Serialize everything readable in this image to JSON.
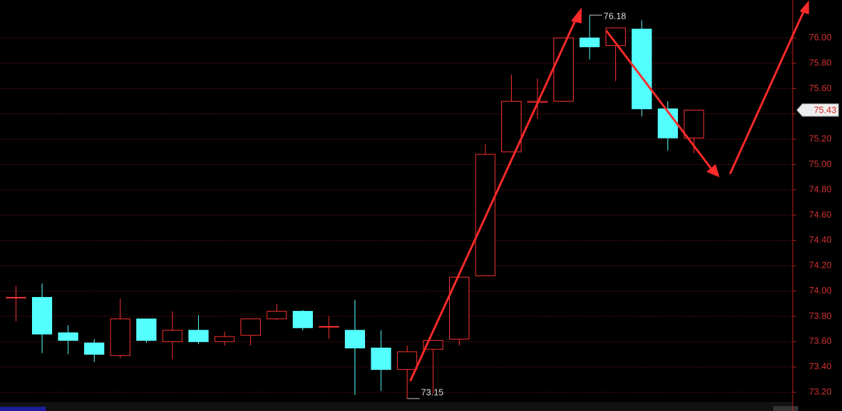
{
  "chart_data": {
    "type": "candlestick",
    "open": [
      73.95,
      73.95,
      73.67,
      73.59,
      73.49,
      73.78,
      73.6,
      73.69,
      73.6,
      73.65,
      73.78,
      73.84,
      73.72,
      73.69,
      73.55,
      73.38,
      73.54,
      73.62,
      74.12,
      75.1,
      75.49,
      75.5,
      76.0,
      75.94,
      76.07,
      75.44,
      75.21
    ],
    "high": [
      74.04,
      74.06,
      73.73,
      73.62,
      73.94,
      73.78,
      73.84,
      73.81,
      73.68,
      73.78,
      73.9,
      73.85,
      73.8,
      73.93,
      73.69,
      73.57,
      73.61,
      74.11,
      75.16,
      75.71,
      75.68,
      76.0,
      76.18,
      76.08,
      76.14,
      75.5,
      75.43
    ],
    "low": [
      73.76,
      73.51,
      73.5,
      73.44,
      73.47,
      73.59,
      73.46,
      73.58,
      73.57,
      73.57,
      73.77,
      73.69,
      73.62,
      73.18,
      73.21,
      73.15,
      73.19,
      73.57,
      74.12,
      75.1,
      75.36,
      75.5,
      75.83,
      75.66,
      75.38,
      75.11,
      75.09
    ],
    "close": [
      73.95,
      73.66,
      73.61,
      73.5,
      73.78,
      73.61,
      73.69,
      73.6,
      73.64,
      73.78,
      73.84,
      73.71,
      73.72,
      73.55,
      73.38,
      73.52,
      73.61,
      74.11,
      75.08,
      75.5,
      75.5,
      76.0,
      75.93,
      76.08,
      75.44,
      75.21,
      75.43
    ],
    "up_color": "#ff3232",
    "down_color": "#54ffff",
    "high_label": 76.18,
    "low_label": 73.15,
    "last_price": 75.43,
    "ylim": [
      73.14,
      76.3
    ],
    "yticks": [
      {
        "value": 73.2,
        "label": "73.20"
      },
      {
        "value": 73.4,
        "label": "73.40"
      },
      {
        "value": 73.6,
        "label": "73.60"
      },
      {
        "value": 73.8,
        "label": "73.80"
      },
      {
        "value": 74.0,
        "label": "74.00"
      },
      {
        "value": 74.2,
        "label": "74.20"
      },
      {
        "value": 74.4,
        "label": "74.40"
      },
      {
        "value": 74.6,
        "label": "74.60"
      },
      {
        "value": 74.8,
        "label": "74.80"
      },
      {
        "value": 75.0,
        "label": "75.00"
      },
      {
        "value": 75.2,
        "label": "75.20"
      },
      {
        "value": 75.4,
        "label": "75.40"
      },
      {
        "value": 75.6,
        "label": "75.60"
      },
      {
        "value": 75.8,
        "label": "75.80"
      },
      {
        "value": 76.0,
        "label": "76.00"
      }
    ],
    "grid": true
  }
}
